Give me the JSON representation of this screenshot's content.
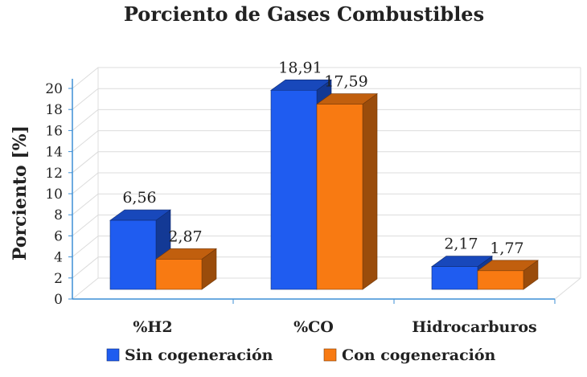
{
  "chart_data": {
    "type": "bar",
    "title": "Porciento de Gases Combustibles",
    "ylabel": "Porciento [%]",
    "xlabel": "",
    "categories": [
      "%H2",
      "%CO",
      "Hidrocarburos"
    ],
    "series": [
      {
        "name": "Sin cogeneración",
        "values": [
          6.56,
          18.91,
          2.17
        ],
        "labels": [
          "6,56",
          "18,91",
          "2,17"
        ],
        "color": "#1f5cf0"
      },
      {
        "name": "Con cogeneración",
        "values": [
          2.87,
          17.59,
          1.77
        ],
        "labels": [
          "2,87",
          "17,59",
          "1,77"
        ],
        "color": "#f87a12"
      }
    ],
    "ylim": [
      0,
      20
    ],
    "yticks": [
      "0",
      "2",
      "4",
      "6",
      "8",
      "10",
      "12",
      "14",
      "16",
      "18",
      "20"
    ],
    "grid": true,
    "legend": "bottom"
  }
}
